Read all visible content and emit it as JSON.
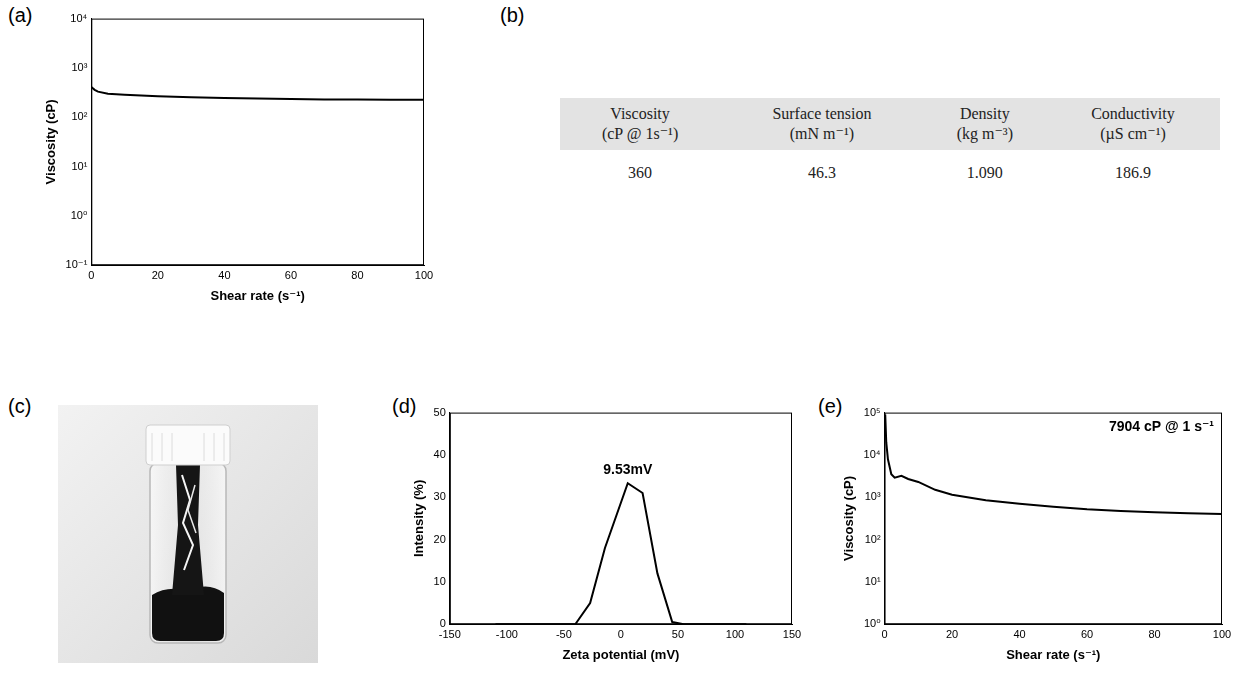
{
  "chart_data": [
    {
      "panel": "(a)",
      "type": "line",
      "x_label": "Shear rate (s⁻¹)",
      "y_label": "Viscosity (cP)",
      "x": [
        0,
        1,
        2,
        5,
        10,
        20,
        30,
        40,
        50,
        60,
        70,
        80,
        90,
        100
      ],
      "values": [
        410,
        360,
        330,
        300,
        285,
        265,
        255,
        245,
        240,
        235,
        230,
        228,
        226,
        225
      ],
      "color": "#000000",
      "log": "y",
      "grid": false,
      "xlim": [
        0,
        100
      ],
      "xticks": [
        0,
        20,
        40,
        60,
        80,
        100
      ],
      "ylim": [
        0.1,
        10000
      ],
      "yticks": [
        {
          "value": 0.1,
          "label": "10⁻¹"
        },
        {
          "value": 1,
          "label": "10⁰"
        },
        {
          "value": 10,
          "label": "10¹"
        },
        {
          "value": 100,
          "label": "10²"
        },
        {
          "value": 1000,
          "label": "10³"
        },
        {
          "value": 10000,
          "label": "10⁴"
        }
      ]
    },
    {
      "panel": "(d)",
      "type": "line",
      "x_label": "Zeta potential (mV)",
      "y_label": "Intensity (%)",
      "annotation": "9.53mV",
      "x": [
        -110,
        -100,
        -90,
        -80,
        -70,
        -60,
        -50,
        -40,
        -27,
        -14,
        6,
        19,
        32,
        45,
        55,
        70,
        85,
        100,
        110
      ],
      "values": [
        0,
        0,
        0,
        0,
        0,
        0,
        0,
        0,
        5,
        18,
        33.3,
        31,
        12,
        0.5,
        0,
        0,
        0,
        0,
        0
      ],
      "color": "#000000",
      "grid": false,
      "xlim": [
        -150,
        150
      ],
      "xticks": [
        -150,
        -100,
        -50,
        0,
        50,
        100,
        150
      ],
      "ylim": [
        0,
        50
      ],
      "yticks": [
        0,
        10,
        20,
        30,
        40,
        50
      ]
    },
    {
      "panel": "(e)",
      "type": "line",
      "x_label": "Shear rate (s⁻¹)",
      "y_label": "Viscosity (cP)",
      "annotation": "7904 cP @ 1 s⁻¹",
      "x": [
        0.2,
        0.5,
        1,
        2,
        3,
        5,
        7,
        10,
        15,
        20,
        30,
        40,
        50,
        60,
        70,
        80,
        90,
        100
      ],
      "values": [
        90000,
        20000,
        7904,
        3500,
        2900,
        3200,
        2700,
        2300,
        1500,
        1150,
        850,
        700,
        600,
        520,
        470,
        440,
        420,
        400
      ],
      "color": "#000000",
      "log": "y",
      "grid": false,
      "xlim": [
        0,
        100
      ],
      "xticks": [
        0,
        20,
        40,
        60,
        80,
        100
      ],
      "ylim": [
        1,
        100000
      ],
      "yticks": [
        {
          "value": 1,
          "label": "10⁰"
        },
        {
          "value": 10,
          "label": "10¹"
        },
        {
          "value": 100,
          "label": "10²"
        },
        {
          "value": 1000,
          "label": "10³"
        },
        {
          "value": 10000,
          "label": "10⁴"
        },
        {
          "value": 100000,
          "label": "10⁵"
        }
      ]
    }
  ],
  "table": {
    "panel": "(b)",
    "header": [
      [
        "Viscosity",
        "(cP @ 1s⁻¹)"
      ],
      [
        "Surface tension",
        "(mN m⁻¹)"
      ],
      [
        "Density",
        "(kg m⁻³)"
      ],
      [
        "Conductivity",
        "(µS cm⁻¹)"
      ]
    ],
    "rows": [
      [
        "360",
        "46.3",
        "1.090",
        "186.9"
      ]
    ]
  },
  "photo": {
    "panel": "(c)"
  }
}
